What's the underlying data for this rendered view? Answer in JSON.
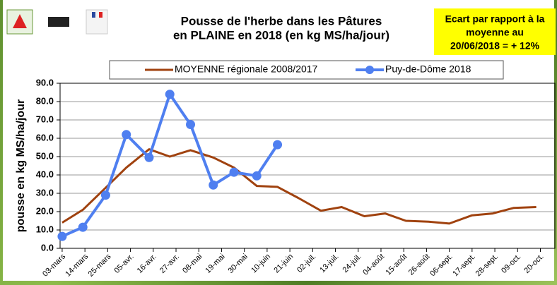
{
  "chart_data": {
    "type": "line",
    "title": [
      "Pousse de l'herbe dans les Pâtures",
      "en PLAINE en 2018 (en kg MS/ha/jour)"
    ],
    "annotation": [
      "Ecart par rapport à la",
      "moyenne au",
      "20/06/2018 = + 12%"
    ],
    "y_label": "pousse en kg MS/ha/jour",
    "xlim": [
      -1,
      238
    ],
    "ylim": [
      0,
      90
    ],
    "xticks": [
      {
        "value": 0,
        "label": "03-mars"
      },
      {
        "value": 11,
        "label": "14-mars"
      },
      {
        "value": 22,
        "label": "25-mars"
      },
      {
        "value": 33,
        "label": "05-avr."
      },
      {
        "value": 44,
        "label": "16-avr."
      },
      {
        "value": 55,
        "label": "27-avr."
      },
      {
        "value": 66,
        "label": "08-mai"
      },
      {
        "value": 77,
        "label": "19-mai"
      },
      {
        "value": 88,
        "label": "30-mai"
      },
      {
        "value": 99,
        "label": "10-juin"
      },
      {
        "value": 110,
        "label": "21-juin"
      },
      {
        "value": 121,
        "label": "02-juil."
      },
      {
        "value": 132,
        "label": "13-juil."
      },
      {
        "value": 143,
        "label": "24-juil."
      },
      {
        "value": 154,
        "label": "04-août"
      },
      {
        "value": 165,
        "label": "15-août"
      },
      {
        "value": 176,
        "label": "26-août"
      },
      {
        "value": 187,
        "label": "06-sept."
      },
      {
        "value": 198,
        "label": "17-sept."
      },
      {
        "value": 209,
        "label": "28-sept."
      },
      {
        "value": 220,
        "label": "09-oct."
      },
      {
        "value": 231,
        "label": "20-oct."
      }
    ],
    "yticks": [
      {
        "value": 0,
        "label": "0.0"
      },
      {
        "value": 10,
        "label": "10.0"
      },
      {
        "value": 20,
        "label": "20.0"
      },
      {
        "value": 30,
        "label": "30.0"
      },
      {
        "value": 40,
        "label": "40.0"
      },
      {
        "value": 50,
        "label": "50.0"
      },
      {
        "value": 60,
        "label": "60.0"
      },
      {
        "value": 70,
        "label": "70.0"
      },
      {
        "value": 80,
        "label": "80.0"
      },
      {
        "value": 90,
        "label": "90.0"
      }
    ],
    "grid": true,
    "series": [
      {
        "name": "MOYENNE régionale 2008/2017",
        "color": "#a0420f",
        "marker": false,
        "x": [
          0,
          10,
          21,
          31,
          42,
          52,
          62,
          73,
          83,
          94,
          104,
          114,
          125,
          135,
          146,
          156,
          166,
          177,
          187,
          198,
          208,
          218,
          229
        ],
        "values": [
          14,
          21,
          33,
          44,
          54,
          50,
          53.5,
          49.5,
          44,
          34,
          33.5,
          27.5,
          20.5,
          22.5,
          17.5,
          19,
          15,
          14.5,
          13.5,
          18,
          19,
          22,
          22.5
        ]
      },
      {
        "name": "Puy-de-Dôme 2018",
        "color": "#4f7ff0",
        "marker": true,
        "x": [
          0,
          10,
          21,
          31,
          42,
          52,
          62,
          73,
          83,
          94,
          104
        ],
        "values": [
          6.5,
          11.5,
          29,
          62,
          49.5,
          84,
          67.5,
          34.5,
          41.5,
          39.5,
          56.5
        ]
      }
    ]
  }
}
